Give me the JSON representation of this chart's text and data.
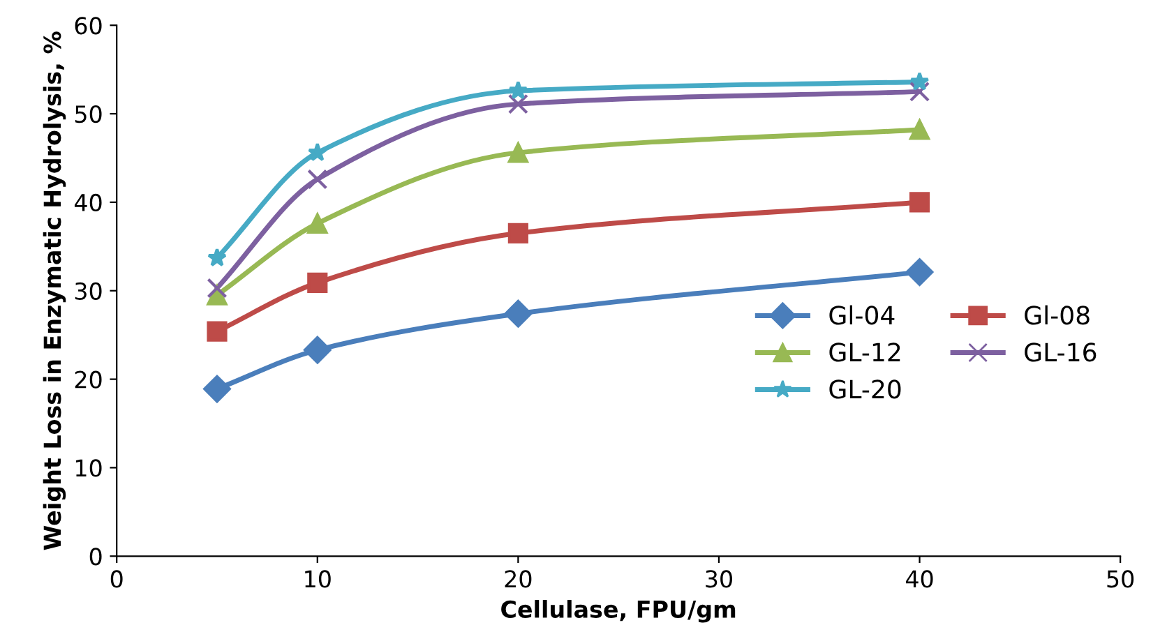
{
  "chart_data": {
    "type": "line",
    "xlabel": "Cellulase, FPU/gm",
    "ylabel": "Weight Loss in Enzymatic Hydrolysis, %",
    "x": [
      5,
      10,
      20,
      40
    ],
    "series": [
      {
        "name": "Gl-04",
        "color": "#4a7ebb",
        "marker": "diamond",
        "values": [
          18.9,
          23.3,
          27.4,
          32.1
        ]
      },
      {
        "name": "Gl-08",
        "color": "#be4b48",
        "marker": "square",
        "values": [
          25.4,
          30.9,
          36.5,
          40.0
        ]
      },
      {
        "name": "GL-12",
        "color": "#98b954",
        "marker": "triangle",
        "values": [
          29.5,
          37.6,
          45.6,
          48.2
        ]
      },
      {
        "name": "GL-16",
        "color": "#7d60a0",
        "marker": "cross",
        "values": [
          30.3,
          42.6,
          51.1,
          52.5
        ]
      },
      {
        "name": "GL-20",
        "color": "#46aac5",
        "marker": "star",
        "values": [
          33.7,
          45.6,
          52.6,
          53.6
        ]
      }
    ],
    "xlim": [
      0,
      50
    ],
    "xticks": [
      0,
      10,
      20,
      30,
      40,
      50
    ],
    "ylim": [
      0,
      60
    ],
    "yticks": [
      0,
      10,
      20,
      30,
      40,
      50,
      60
    ],
    "grid": false,
    "legend": "right",
    "line_style": "solid"
  }
}
